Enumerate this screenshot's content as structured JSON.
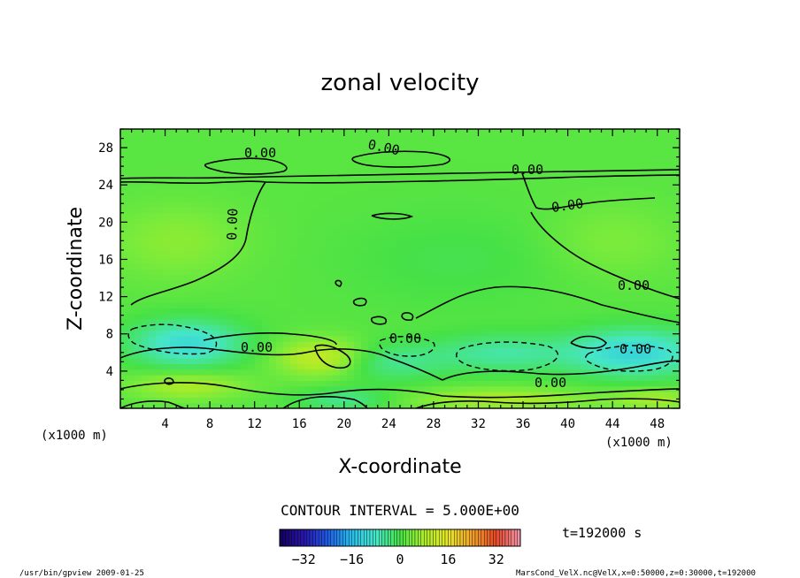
{
  "chart_data": {
    "type": "heatmap",
    "title": "zonal velocity",
    "xlabel": "X-coordinate",
    "ylabel": "Z-coordinate",
    "x_unit_left": "(x1000 m)",
    "x_unit_right": "(x1000 m)",
    "xlim": [
      0,
      50
    ],
    "ylim": [
      0,
      30
    ],
    "xticks": [
      4,
      8,
      12,
      16,
      20,
      24,
      28,
      32,
      36,
      40,
      44,
      48
    ],
    "yticks": [
      4,
      8,
      12,
      16,
      20,
      24,
      28
    ],
    "contour_label": "0.00",
    "contour_interval_text": "CONTOUR INTERVAL = 5.000E+00",
    "time_text": "t=192000 s",
    "colorbar": {
      "min": -40,
      "max": 40,
      "ticks": [
        -32,
        -16,
        0,
        16,
        32
      ]
    },
    "blobs": [
      {
        "x": 6,
        "z": 7,
        "v": -12,
        "sx": 5,
        "sz": 2.5
      },
      {
        "x": 46,
        "z": 6,
        "v": -13,
        "sx": 6,
        "sz": 2.5
      },
      {
        "x": 34,
        "z": 6,
        "v": -7,
        "sx": 6,
        "sz": 2.0
      },
      {
        "x": 24,
        "z": 5,
        "v": -6,
        "sx": 5,
        "sz": 2.0
      },
      {
        "x": 18,
        "z": 5.5,
        "v": 10,
        "sx": 4,
        "sz": 2.0
      },
      {
        "x": 6,
        "z": 2.5,
        "v": 7,
        "sx": 5,
        "sz": 1.5
      },
      {
        "x": 34,
        "z": 1,
        "v": 7,
        "sx": 8,
        "sz": 1.2
      },
      {
        "x": 48,
        "z": 1,
        "v": 6,
        "sx": 4,
        "sz": 1.2
      },
      {
        "x": 20,
        "z": 1,
        "v": -6,
        "sx": 4,
        "sz": 1.2
      },
      {
        "x": 5,
        "z": 18,
        "v": 4,
        "sx": 6,
        "sz": 4.0
      },
      {
        "x": 44,
        "z": 18,
        "v": 3,
        "sx": 6,
        "sz": 4.0
      },
      {
        "x": 30,
        "z": 16,
        "v": -2,
        "sx": 10,
        "sz": 5.0
      }
    ]
  },
  "footer": {
    "left": "/usr/bin/gpview  2009-01-25",
    "right": "MarsCond_VelX.nc@VelX,x=0:50000,z=0:30000,t=192000"
  }
}
